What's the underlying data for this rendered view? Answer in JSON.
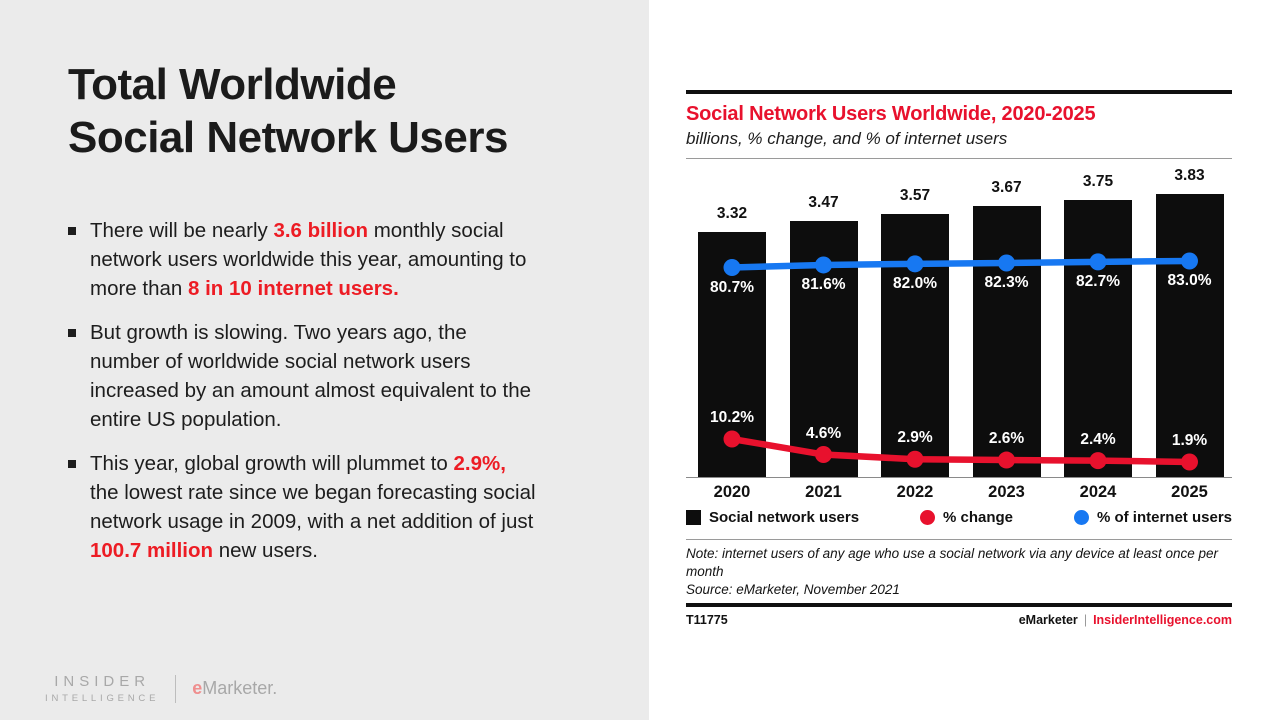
{
  "slide": {
    "title_lines": [
      "Total Worldwide",
      "Social Network Users"
    ],
    "bullets": [
      {
        "segments": [
          {
            "text": "There will be nearly ",
            "red": false
          },
          {
            "text": "3.6 billion",
            "red": true
          },
          {
            "text": " monthly social network users worldwide this year, amounting to more than ",
            "red": false
          },
          {
            "text": "8 in 10 internet users.",
            "red": true
          }
        ]
      },
      {
        "segments": [
          {
            "text": "But growth is slowing. Two years ago, the number of worldwide social network users increased by an amount almost equivalent to the entire US population.",
            "red": false
          }
        ]
      },
      {
        "segments": [
          {
            "text": "This year, global growth will plummet to ",
            "red": false
          },
          {
            "text": "2.9%,",
            "red": true
          },
          {
            "text": " the lowest rate since we began forecasting social network usage in 2009, with a net addition of just ",
            "red": false
          },
          {
            "text": "100.7 million",
            "red": true
          },
          {
            "text": " new users.",
            "red": false
          }
        ]
      }
    ],
    "logo": {
      "top": "INSIDER",
      "bottom": "INTELLIGENCE",
      "brand_initial": "e",
      "brand_rest": "Marketer."
    }
  },
  "chart": {
    "title": "Social Network Users Worldwide, 2020-2025",
    "subtitle": "billions, % change, and % of internet users",
    "note": "Note: internet users of any age who use a social network via any device at least once per month",
    "source": "Source: eMarketer, November 2021",
    "footer": {
      "chart_id": "T11775",
      "brand": "eMarketer",
      "separator": "|",
      "site": "InsiderIntelligence.com"
    }
  },
  "chart_data": {
    "type": "bar",
    "title": "Social Network Users Worldwide, 2020-2025",
    "subtitle": "billions, % change, and % of internet users",
    "categories": [
      "2020",
      "2021",
      "2022",
      "2023",
      "2024",
      "2025"
    ],
    "series": [
      {
        "name": "Social network users",
        "type": "bar",
        "unit": "billions",
        "color": "#0d0d0d",
        "values": [
          3.32,
          3.47,
          3.57,
          3.67,
          3.75,
          3.83
        ],
        "labels": [
          "3.32",
          "3.47",
          "3.57",
          "3.67",
          "3.75",
          "3.83"
        ]
      },
      {
        "name": "% change",
        "type": "line",
        "unit": "%",
        "color": "#e8112d",
        "values": [
          10.2,
          4.6,
          2.9,
          2.6,
          2.4,
          1.9
        ],
        "labels": [
          "10.2%",
          "4.6%",
          "2.9%",
          "2.6%",
          "2.4%",
          "1.9%"
        ]
      },
      {
        "name": "% of internet users",
        "type": "line",
        "unit": "%",
        "color": "#1778f2",
        "values": [
          80.7,
          81.6,
          82.0,
          82.3,
          82.7,
          83.0
        ],
        "labels": [
          "80.7%",
          "81.6%",
          "82.0%",
          "82.3%",
          "82.7%",
          "83.0%"
        ]
      }
    ],
    "legend": [
      {
        "label": "Social network users",
        "swatch": "square",
        "color": "#0d0d0d"
      },
      {
        "label": "% change",
        "swatch": "circle",
        "color": "#e8112d"
      },
      {
        "label": "% of internet users",
        "swatch": "circle",
        "color": "#1778f2"
      }
    ],
    "ylim_bars": [
      0,
      3.9
    ],
    "grid": false,
    "legend_position": "bottom"
  },
  "colors": {
    "accent_red_text": "#ed1c24",
    "chart_red": "#e8112d",
    "chart_blue": "#1778f2",
    "bar_black": "#0d0d0d",
    "left_panel_bg": "#ebebeb",
    "logo_gray": "#a8a8a8",
    "logo_e_pink": "#ef8e8e"
  }
}
